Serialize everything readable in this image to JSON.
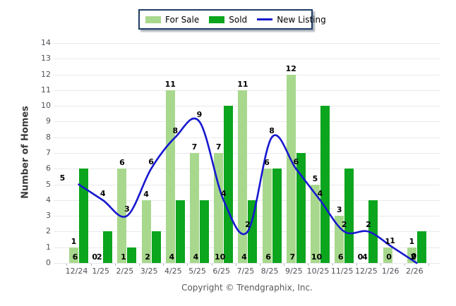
{
  "legend": {
    "items": [
      {
        "label": "For Sale",
        "color": "#a8d88d",
        "type": "box"
      },
      {
        "label": "Sold",
        "color": "#0ba51e",
        "type": "box"
      },
      {
        "label": "New Listing",
        "color": "#1717cf",
        "type": "line"
      }
    ]
  },
  "y_axis": {
    "label": "Number of Homes",
    "min": 0,
    "max": 14,
    "tick_step": 1
  },
  "footer": {
    "copyright": "Copyright © Trendgraphix, Inc."
  },
  "chart_data": {
    "type": "bar",
    "subtype": "grouped-bars-with-line",
    "title": "",
    "xlabel": "",
    "ylabel": "Number of Homes",
    "ylim": [
      0,
      14
    ],
    "grid": true,
    "legend_position": "top",
    "categories": [
      "12/24",
      "1/25",
      "2/25",
      "3/25",
      "4/25",
      "5/25",
      "6/25",
      "7/25",
      "8/25",
      "9/25",
      "10/25",
      "11/25",
      "12/25",
      "1/26",
      "2/26"
    ],
    "series": [
      {
        "name": "For Sale",
        "type": "bar",
        "color": "#a8d88d",
        "values": [
          1,
          0,
          6,
          4,
          11,
          7,
          7,
          11,
          6,
          12,
          5,
          3,
          0,
          1,
          1
        ]
      },
      {
        "name": "Sold",
        "type": "bar",
        "color": "#0ba51e",
        "values": [
          6,
          2,
          1,
          2,
          4,
          4,
          10,
          4,
          6,
          7,
          10,
          6,
          4,
          0,
          2
        ]
      },
      {
        "name": "New Listing",
        "type": "line",
        "color": "#1717cf",
        "values": [
          5,
          4,
          3,
          6,
          8,
          9,
          4,
          2,
          8,
          6,
          4,
          2,
          2,
          1,
          0
        ]
      }
    ]
  }
}
